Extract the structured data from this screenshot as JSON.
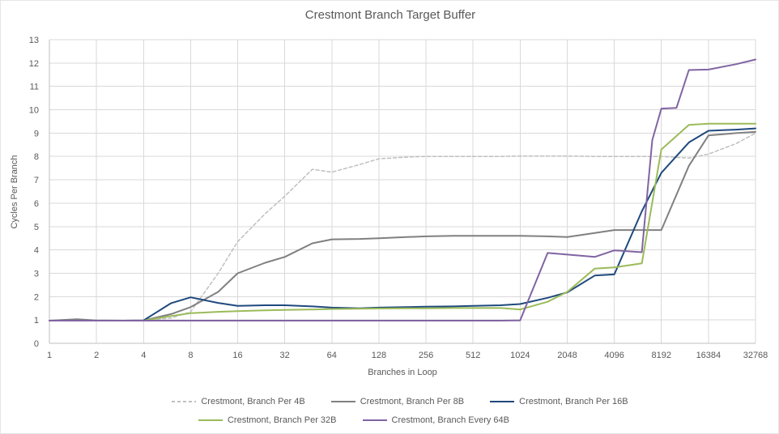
{
  "title": "Crestmont Branch Target Buffer",
  "colors": {
    "grid": "#d9d9d9",
    "axis": "#bfbfbf",
    "text": "#595959",
    "background": "#ffffff"
  },
  "chart_data": {
    "type": "line",
    "title": "Crestmont Branch Target Buffer",
    "xlabel": "Branches in Loop",
    "ylabel": "Cycles Per Branch",
    "x_scale": "log2",
    "x_ticks": [
      1,
      2,
      4,
      8,
      16,
      32,
      64,
      128,
      256,
      512,
      1024,
      2048,
      4096,
      8192,
      16384,
      32768
    ],
    "y_ticks": [
      0,
      1,
      2,
      3,
      4,
      5,
      6,
      7,
      8,
      9,
      10,
      11,
      12,
      13
    ],
    "ylim": [
      0,
      13
    ],
    "grid": true,
    "legend_position": "bottom",
    "legend_rows": [
      [
        0,
        1,
        2
      ],
      [
        3,
        4
      ]
    ],
    "series": [
      {
        "name": "Crestmont, Branch Per 4B",
        "color": "#bfbfbf",
        "dash": "4 3",
        "width": 1.5,
        "points": [
          [
            1,
            0.97
          ],
          [
            2,
            0.97
          ],
          [
            3,
            0.97
          ],
          [
            4,
            0.98
          ],
          [
            6,
            1.08
          ],
          [
            8,
            1.35
          ],
          [
            12,
            3.0
          ],
          [
            16,
            4.35
          ],
          [
            24,
            5.55
          ],
          [
            32,
            6.3
          ],
          [
            48,
            7.45
          ],
          [
            64,
            7.33
          ],
          [
            96,
            7.65
          ],
          [
            128,
            7.9
          ],
          [
            192,
            7.97
          ],
          [
            256,
            8.0
          ],
          [
            384,
            8.0
          ],
          [
            512,
            8.0
          ],
          [
            768,
            8.0
          ],
          [
            1024,
            8.02
          ],
          [
            1536,
            8.02
          ],
          [
            2048,
            8.02
          ],
          [
            3072,
            8.0
          ],
          [
            4096,
            8.0
          ],
          [
            6144,
            8.0
          ],
          [
            8192,
            8.0
          ],
          [
            12288,
            7.93
          ],
          [
            16384,
            8.1
          ],
          [
            24576,
            8.55
          ],
          [
            32768,
            9.0
          ]
        ]
      },
      {
        "name": "Crestmont, Branch Per 8B",
        "color": "#808080",
        "dash": null,
        "width": 2,
        "points": [
          [
            1,
            0.97
          ],
          [
            1.5,
            1.03
          ],
          [
            2,
            0.98
          ],
          [
            3,
            0.97
          ],
          [
            4,
            0.98
          ],
          [
            6,
            1.25
          ],
          [
            8,
            1.55
          ],
          [
            12,
            2.2
          ],
          [
            16,
            3.0
          ],
          [
            24,
            3.45
          ],
          [
            32,
            3.7
          ],
          [
            48,
            4.28
          ],
          [
            64,
            4.45
          ],
          [
            96,
            4.47
          ],
          [
            128,
            4.5
          ],
          [
            192,
            4.55
          ],
          [
            256,
            4.58
          ],
          [
            384,
            4.6
          ],
          [
            512,
            4.6
          ],
          [
            768,
            4.6
          ],
          [
            1024,
            4.6
          ],
          [
            1536,
            4.58
          ],
          [
            2048,
            4.55
          ],
          [
            3072,
            4.72
          ],
          [
            4096,
            4.85
          ],
          [
            6144,
            4.85
          ],
          [
            8192,
            4.85
          ],
          [
            12288,
            7.6
          ],
          [
            16384,
            8.9
          ],
          [
            24576,
            9.0
          ],
          [
            32768,
            9.05
          ]
        ]
      },
      {
        "name": "Crestmont, Branch Per 16B",
        "color": "#1f497d",
        "dash": null,
        "width": 2,
        "points": [
          [
            1,
            0.97
          ],
          [
            2,
            0.97
          ],
          [
            3,
            0.97
          ],
          [
            4,
            0.98
          ],
          [
            6,
            1.72
          ],
          [
            8,
            1.97
          ],
          [
            12,
            1.73
          ],
          [
            16,
            1.6
          ],
          [
            24,
            1.63
          ],
          [
            32,
            1.63
          ],
          [
            48,
            1.58
          ],
          [
            64,
            1.53
          ],
          [
            96,
            1.5
          ],
          [
            128,
            1.53
          ],
          [
            192,
            1.55
          ],
          [
            256,
            1.57
          ],
          [
            384,
            1.58
          ],
          [
            512,
            1.6
          ],
          [
            768,
            1.63
          ],
          [
            1024,
            1.68
          ],
          [
            1536,
            1.95
          ],
          [
            2048,
            2.18
          ],
          [
            3072,
            2.9
          ],
          [
            4096,
            2.95
          ],
          [
            6144,
            5.65
          ],
          [
            8192,
            7.3
          ],
          [
            12288,
            8.6
          ],
          [
            16384,
            9.1
          ],
          [
            24576,
            9.15
          ],
          [
            32768,
            9.2
          ]
        ]
      },
      {
        "name": "Crestmont, Branch Per 32B",
        "color": "#9bbb59",
        "dash": null,
        "width": 2,
        "points": [
          [
            1,
            0.97
          ],
          [
            2,
            0.97
          ],
          [
            3,
            0.97
          ],
          [
            4,
            0.97
          ],
          [
            6,
            1.17
          ],
          [
            8,
            1.29
          ],
          [
            12,
            1.35
          ],
          [
            16,
            1.38
          ],
          [
            24,
            1.41
          ],
          [
            32,
            1.43
          ],
          [
            48,
            1.45
          ],
          [
            64,
            1.47
          ],
          [
            96,
            1.48
          ],
          [
            128,
            1.49
          ],
          [
            192,
            1.5
          ],
          [
            256,
            1.5
          ],
          [
            384,
            1.51
          ],
          [
            512,
            1.51
          ],
          [
            768,
            1.51
          ],
          [
            1024,
            1.45
          ],
          [
            1536,
            1.78
          ],
          [
            2048,
            2.2
          ],
          [
            3072,
            3.2
          ],
          [
            4096,
            3.25
          ],
          [
            6144,
            3.42
          ],
          [
            8192,
            8.3
          ],
          [
            12288,
            9.35
          ],
          [
            16384,
            9.4
          ],
          [
            24576,
            9.4
          ],
          [
            32768,
            9.4
          ]
        ]
      },
      {
        "name": "Crestmont, Branch Every 64B",
        "color": "#8064a2",
        "dash": null,
        "width": 2,
        "points": [
          [
            1,
            0.97
          ],
          [
            2,
            0.97
          ],
          [
            4,
            0.97
          ],
          [
            8,
            0.97
          ],
          [
            16,
            0.97
          ],
          [
            32,
            0.97
          ],
          [
            64,
            0.97
          ],
          [
            128,
            0.97
          ],
          [
            256,
            0.97
          ],
          [
            512,
            0.97
          ],
          [
            768,
            0.97
          ],
          [
            1024,
            0.98
          ],
          [
            1536,
            3.87
          ],
          [
            2048,
            3.8
          ],
          [
            3072,
            3.7
          ],
          [
            4096,
            3.98
          ],
          [
            6144,
            3.9
          ],
          [
            7168,
            8.7
          ],
          [
            8192,
            10.05
          ],
          [
            10240,
            10.08
          ],
          [
            12288,
            11.7
          ],
          [
            16384,
            11.72
          ],
          [
            24576,
            11.95
          ],
          [
            32768,
            12.15
          ]
        ]
      }
    ]
  }
}
